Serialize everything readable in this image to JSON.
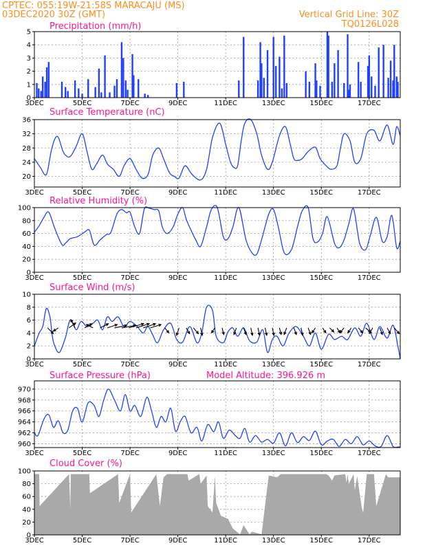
{
  "header": {
    "line1_left": "CPTEC:   055:19W-21:58S   MARACAJU (MS)",
    "line2_left": "03DEC2020 30Z (GMT)",
    "line2_right": "Vertical Grid Line: 30Z",
    "line3_right": "TQ0126L028"
  },
  "colors": {
    "header": "#ff8c1a",
    "title": "#ff1493",
    "series": "#2040ff",
    "cloud": "#a9a9a9",
    "grid": "#9a9a9a"
  },
  "x_tick_labels": [
    "3DEC",
    "5DEC",
    "7DEC",
    "9DEC",
    "11DEC",
    "13DEC",
    "15DEC",
    "17DEC"
  ],
  "chart_data": [
    {
      "type": "bar",
      "title": "Precipitation (mm/h)",
      "xlim": [
        0,
        15.3
      ],
      "ylim": [
        0,
        5
      ],
      "yticks": [
        0,
        1,
        2,
        3,
        4,
        5
      ],
      "x_tick_values": [
        0,
        2,
        4,
        6,
        8,
        10,
        12,
        14
      ],
      "x": [
        0.1,
        0.18,
        0.28,
        0.35,
        0.45,
        0.52,
        0.6,
        1.15,
        1.3,
        1.4,
        1.7,
        1.85,
        2.0,
        2.25,
        2.55,
        2.7,
        2.8,
        2.95,
        3.15,
        3.35,
        3.45,
        3.65,
        3.72,
        3.82,
        3.9,
        4.1,
        4.15,
        4.35,
        4.62,
        4.75,
        5.95,
        6.25,
        8.55,
        8.75,
        9.35,
        9.45,
        9.5,
        9.6,
        9.75,
        10.0,
        10.1,
        10.25,
        10.35,
        10.45,
        10.55,
        11.35,
        11.5,
        11.75,
        11.8,
        11.95,
        12.25,
        12.3,
        12.45,
        12.55,
        12.7,
        12.95,
        13.1,
        13.15,
        13.2,
        13.55,
        13.65,
        13.95,
        14.0,
        14.1,
        14.25,
        14.4,
        14.6,
        14.8,
        14.9,
        15.0,
        15.05,
        15.15,
        15.2
      ],
      "values": [
        1.1,
        0.7,
        0.5,
        1.6,
        1.2,
        2.3,
        2.7,
        1.2,
        0.8,
        0.5,
        1.3,
        0.7,
        0.3,
        1.4,
        0.8,
        2.2,
        0.4,
        3.2,
        0.4,
        0.9,
        1.4,
        4.2,
        3.0,
        1.3,
        0.6,
        3.3,
        1.7,
        1.4,
        0.3,
        0.2,
        1.1,
        1.2,
        1.3,
        4.6,
        1.3,
        4.2,
        2.6,
        1.5,
        3.6,
        4.6,
        2.4,
        3.1,
        0.7,
        4.7,
        1.1,
        2.0,
        1.2,
        2.6,
        1.3,
        0.9,
        5.0,
        4.7,
        1.2,
        2.6,
        3.6,
        1.1,
        4.8,
        0.6,
        1.0,
        2.7,
        1.2,
        2.4,
        3.2,
        1.6,
        0.9,
        3.8,
        4.0,
        1.5,
        2.8,
        1.3,
        4.0,
        1.6,
        1.2
      ]
    },
    {
      "type": "line",
      "title": "Surface Temperature (nC)",
      "xlim": [
        0,
        15.3
      ],
      "ylim": [
        17,
        36
      ],
      "yticks": [
        20,
        24,
        28,
        32,
        36
      ],
      "x_tick_values": [
        0,
        2,
        4,
        6,
        8,
        10,
        12,
        14
      ],
      "x": [
        0,
        0.1,
        0.25,
        0.5,
        0.7,
        0.85,
        1.0,
        1.2,
        1.4,
        1.55,
        1.75,
        2.0,
        2.2,
        2.4,
        2.6,
        2.85,
        3.05,
        3.3,
        3.55,
        3.75,
        4.0,
        4.25,
        4.5,
        4.75,
        4.95,
        5.2,
        5.4,
        5.65,
        5.85,
        6.05,
        6.3,
        6.6,
        6.95,
        7.2,
        7.45,
        7.75,
        8.0,
        8.2,
        8.35,
        8.5,
        8.65,
        8.8,
        9.05,
        9.3,
        9.5,
        9.75,
        9.95,
        10.25,
        10.5,
        10.7,
        10.85,
        11.0,
        11.2,
        11.45,
        11.75,
        11.95,
        12.2,
        12.4,
        12.65,
        12.8,
        12.95,
        13.2,
        13.4,
        13.65,
        13.9,
        14.2,
        14.45,
        14.75,
        15.0,
        15.15,
        15.3
      ],
      "values": [
        25,
        24,
        22.5,
        20.5,
        27,
        30.5,
        31,
        27,
        25.5,
        26,
        28.5,
        32,
        27,
        22,
        23.5,
        26,
        23.5,
        22,
        20,
        23,
        25,
        22,
        19.5,
        20.5,
        26,
        28,
        25,
        21,
        20,
        19.5,
        23,
        20.5,
        19,
        22,
        31,
        35,
        29,
        24,
        22.5,
        23,
        30,
        35,
        36,
        32,
        26,
        22,
        24,
        31.5,
        34,
        29,
        25,
        24.5,
        25,
        27,
        28.2,
        25,
        23,
        22,
        23,
        28,
        32,
        30,
        24,
        25,
        32,
        33,
        30,
        34.5,
        29,
        34,
        31.5
      ]
    },
    {
      "type": "line",
      "title": "Relative Humidity (%)",
      "xlim": [
        0,
        15.3
      ],
      "ylim": [
        0,
        100
      ],
      "yticks": [
        0,
        20,
        40,
        60,
        80,
        100
      ],
      "x_tick_values": [
        0,
        2,
        4,
        6,
        8,
        10,
        12,
        14
      ],
      "x": [
        0,
        0.2,
        0.4,
        0.6,
        0.85,
        1.15,
        1.3,
        1.5,
        1.8,
        2.1,
        2.3,
        2.5,
        2.75,
        3.0,
        3.2,
        3.45,
        3.65,
        3.85,
        4.0,
        4.2,
        4.4,
        4.6,
        4.8,
        5.0,
        5.2,
        5.35,
        5.55,
        5.8,
        6.0,
        6.2,
        6.35,
        6.55,
        6.75,
        6.95,
        7.2,
        7.4,
        7.65,
        7.9,
        8.1,
        8.3,
        8.55,
        8.85,
        9.1,
        9.3,
        9.5,
        9.8,
        10.0,
        10.2,
        10.45,
        10.75,
        11.0,
        11.2,
        11.45,
        11.65,
        11.85,
        12.05,
        12.25,
        12.55,
        12.75,
        12.95,
        13.15,
        13.35,
        13.6,
        13.85,
        14.05,
        14.3,
        14.55,
        14.75,
        14.95,
        15.15,
        15.3
      ],
      "values": [
        62,
        72,
        85,
        93,
        68,
        43,
        45,
        52,
        55,
        62,
        65,
        42,
        50,
        58,
        62,
        90,
        97,
        92,
        93,
        70,
        60,
        98,
        99,
        97,
        95,
        70,
        60,
        70,
        90,
        100,
        82,
        65,
        50,
        40,
        70,
        97,
        100,
        55,
        52,
        70,
        100,
        50,
        30,
        28,
        50,
        90,
        97,
        70,
        30,
        35,
        70,
        95,
        100,
        52,
        47,
        60,
        86,
        45,
        38,
        50,
        75,
        98,
        45,
        35,
        57,
        85,
        48,
        55,
        88,
        38,
        48
      ]
    },
    {
      "type": "line",
      "title": "Surface Wind (m/s)",
      "xlim": [
        0,
        15.3
      ],
      "ylim": [
        0,
        10
      ],
      "yticks": [
        0,
        2,
        4,
        6,
        8,
        10
      ],
      "x_tick_values": [
        0,
        2,
        4,
        6,
        8,
        10,
        12,
        14
      ],
      "x": [
        0,
        0.2,
        0.35,
        0.5,
        0.65,
        0.75,
        0.85,
        1.05,
        1.3,
        1.5,
        1.75,
        1.95,
        2.2,
        2.45,
        2.65,
        2.85,
        3.05,
        3.25,
        3.5,
        3.75,
        4.0,
        4.3,
        4.55,
        4.75,
        4.95,
        5.15,
        5.4,
        5.7,
        5.95,
        6.2,
        6.5,
        6.8,
        7.0,
        7.2,
        7.45,
        7.6,
        7.9,
        8.1,
        8.3,
        8.5,
        8.75,
        9.0,
        9.3,
        9.55,
        9.75,
        9.95,
        10.15,
        10.4,
        10.65,
        10.95,
        11.25,
        11.5,
        11.75,
        12.0,
        12.3,
        12.55,
        12.85,
        13.1,
        13.4,
        13.65,
        13.9,
        14.2,
        14.45,
        14.75,
        15.0,
        15.2,
        15.3
      ],
      "values": [
        2,
        4,
        5,
        7.8,
        6.5,
        3.5,
        2,
        1,
        3.3,
        6,
        4.5,
        5.8,
        5,
        5.5,
        6,
        4.5,
        6.5,
        5.8,
        6.5,
        5,
        5.8,
        5,
        4,
        5,
        3.7,
        2.5,
        4.5,
        5.5,
        3,
        2.6,
        5,
        2.5,
        4,
        8,
        7.5,
        3.5,
        2.5,
        4.2,
        4.8,
        3.5,
        4.8,
        2.8,
        2.6,
        4.5,
        1,
        3,
        3.5,
        2,
        4,
        5,
        3.5,
        2,
        4,
        1.5,
        3.8,
        3,
        3.5,
        3,
        4.8,
        3.5,
        5.5,
        3,
        5,
        3.2,
        5.2,
        2,
        0
      ]
    },
    {
      "type": "line",
      "title": "Surface Pressure (hPa)",
      "annotation": "Model Altitude: 396.926 m",
      "xlim": [
        0,
        15.3
      ],
      "ylim": [
        959.3,
        971.5
      ],
      "yticks": [
        960,
        962,
        964,
        966,
        968,
        970
      ],
      "x_tick_values": [
        0,
        2,
        4,
        6,
        8,
        10,
        12,
        14
      ],
      "x": [
        0,
        0.15,
        0.4,
        0.6,
        0.8,
        1.0,
        1.2,
        1.4,
        1.6,
        1.8,
        2.0,
        2.25,
        2.5,
        2.7,
        2.9,
        3.1,
        3.35,
        3.6,
        3.8,
        4.0,
        4.2,
        4.45,
        4.7,
        4.9,
        5.1,
        5.3,
        5.5,
        5.7,
        5.9,
        6.1,
        6.3,
        6.55,
        6.8,
        7.0,
        7.25,
        7.5,
        7.7,
        7.9,
        8.15,
        8.4,
        8.6,
        8.8,
        9.0,
        9.25,
        9.5,
        9.75,
        10.0,
        10.25,
        10.5,
        10.75,
        11.0,
        11.25,
        11.5,
        11.75,
        12.0,
        12.25,
        12.5,
        12.75,
        13.0,
        13.25,
        13.5,
        13.75,
        14.0,
        14.25,
        14.5,
        14.75,
        15.0,
        15.2,
        15.3
      ],
      "values": [
        962,
        961.5,
        964.5,
        965.3,
        963,
        964.2,
        962,
        962.5,
        966,
        966.5,
        964,
        967.5,
        967,
        965,
        968,
        970,
        968,
        966,
        969,
        966,
        967,
        965,
        968.5,
        966,
        963,
        965,
        964,
        966.5,
        962.3,
        964,
        965,
        962,
        963,
        960.5,
        963.5,
        962.2,
        964,
        961,
        962.5,
        961.5,
        961,
        962.8,
        960.3,
        961.5,
        960.3,
        960.8,
        960.1,
        962,
        959.6,
        962,
        960.2,
        961.3,
        960.6,
        962.3,
        959.8,
        960.5,
        960.8,
        959.5,
        960.8,
        960,
        961.3,
        959.8,
        960.5,
        959.6,
        959.5,
        961.5,
        959.5,
        959.4,
        959.4
      ]
    },
    {
      "type": "area",
      "title": "Cloud Cover (%)",
      "xlim": [
        0,
        15.3
      ],
      "ylim": [
        0,
        100
      ],
      "yticks": [
        0,
        20,
        40,
        60,
        80,
        100
      ],
      "x_tick_values": [
        0,
        2,
        4,
        6,
        8,
        10,
        12,
        14
      ],
      "x": [
        0,
        0.2,
        0.22,
        1.45,
        1.5,
        1.52,
        2.3,
        2.32,
        3.5,
        3.55,
        4.0,
        4.05,
        5.1,
        5.25,
        5.4,
        5.55,
        6.4,
        6.45,
        6.9,
        6.95,
        7.2,
        7.25,
        7.45,
        7.55,
        7.6,
        7.8,
        8.1,
        8.3,
        8.6,
        8.75,
        9.0,
        9.1,
        9.5,
        9.8,
        10.15,
        10.3,
        12.2,
        12.3,
        12.45,
        12.55,
        13.0,
        13.05,
        13.1,
        13.15,
        13.35,
        13.4,
        13.5,
        13.7,
        13.75,
        13.9,
        14.2,
        14.3,
        14.7,
        14.8,
        15.3
      ],
      "values": [
        95,
        95,
        45,
        95,
        40,
        95,
        95,
        65,
        95,
        50,
        95,
        35,
        95,
        45,
        90,
        95,
        95,
        85,
        95,
        80,
        93,
        45,
        35,
        92,
        50,
        30,
        25,
        10,
        1,
        15,
        1,
        5,
        1,
        93,
        90,
        95,
        95,
        93,
        85,
        93,
        95,
        82,
        95,
        80,
        95,
        70,
        92,
        40,
        35,
        95,
        95,
        45,
        95,
        90,
        90
      ]
    }
  ],
  "wind_vectors": {
    "x": [
      0.55,
      1.0,
      1.45,
      1.7,
      2.1,
      2.45,
      2.75,
      3.05,
      3.35,
      3.65,
      3.95,
      4.25,
      4.55,
      4.85,
      5.45,
      6.05,
      6.35,
      6.65,
      6.95,
      7.55,
      7.85,
      8.45,
      8.75,
      9.05,
      9.35,
      9.65,
      9.95,
      10.25,
      10.55,
      10.85,
      11.15,
      11.45,
      11.75,
      12.05,
      12.35,
      12.65,
      12.95,
      13.25,
      13.55,
      13.85,
      14.15,
      14.45,
      14.75,
      15.05
    ],
    "u": [
      0.7,
      -0.6,
      0.8,
      -0.5,
      0.9,
      -0.8,
      1.0,
      1.2,
      1.5,
      1.7,
      1.8,
      1.6,
      1.5,
      1.3,
      0.5,
      -0.3,
      0.4,
      0.6,
      0.2,
      -0.4,
      0.2,
      -0.3,
      0.3,
      0.2,
      0.2,
      0.2,
      0.2,
      0.2,
      -0.3,
      0.3,
      0.2,
      0.3,
      -0.4,
      0.4,
      0.5,
      0.4,
      -0.5,
      -0.4,
      0.5,
      0.6,
      -0.4,
      0.3,
      0.4,
      0.6
    ],
    "v": [
      -0.7,
      -0.4,
      0.6,
      1.0,
      0.5,
      0.4,
      0.5,
      0.4,
      0.3,
      0.3,
      0.5,
      0.5,
      0.5,
      0.4,
      -0.6,
      -0.9,
      -0.7,
      -0.7,
      -0.9,
      -0.6,
      -0.8,
      -0.8,
      -0.8,
      -0.9,
      -0.9,
      -0.9,
      -0.9,
      -0.8,
      -0.8,
      -0.8,
      -0.9,
      -0.8,
      -0.6,
      -0.6,
      -0.5,
      -0.6,
      -0.6,
      -0.6,
      -0.6,
      -0.5,
      -0.7,
      -0.8,
      -0.7,
      -0.7
    ]
  }
}
